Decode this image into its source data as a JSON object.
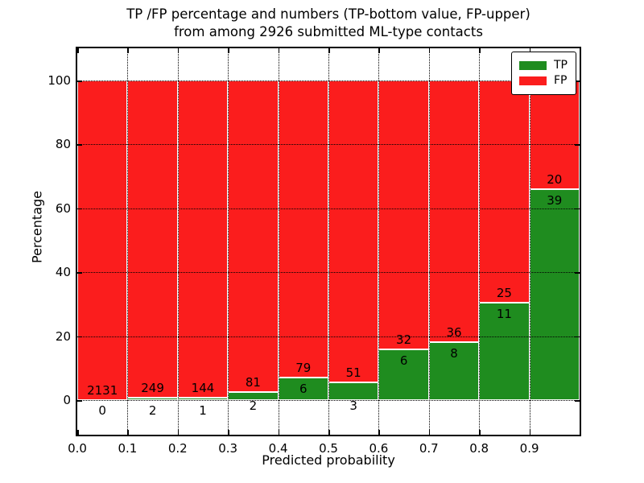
{
  "chart_data": {
    "type": "bar",
    "stacked": true,
    "title_line1": "TP /FP percentage and numbers (TP-bottom value, FP-upper)",
    "title_line2": "from among 2926 submitted ML-type contacts",
    "xlabel": "Predicted probability",
    "ylabel": "Percentage",
    "total_submitted": 2926,
    "grid": "dotted",
    "legend_position": "upper right",
    "xlim": [
      0.0,
      1.0
    ],
    "ylim": [
      -10.8,
      110
    ],
    "bin_width": 0.1,
    "x_tick_labels": [
      "0.0",
      "0.1",
      "0.2",
      "0.3",
      "0.4",
      "0.5",
      "0.6",
      "0.7",
      "0.8",
      "0.9"
    ],
    "y_ticks": [
      {
        "value": 0,
        "label": "0"
      },
      {
        "value": 20,
        "label": "20"
      },
      {
        "value": 40,
        "label": "40"
      },
      {
        "value": 60,
        "label": "60"
      },
      {
        "value": 80,
        "label": "80"
      },
      {
        "value": 100,
        "label": "100"
      }
    ],
    "legend": [
      {
        "label": "TP",
        "color": "#1f8c1f"
      },
      {
        "label": "FP",
        "color": "#fb1d1d"
      }
    ],
    "colors": {
      "tp": "#1f8c1f",
      "fp": "#fb1d1d",
      "bar_edge": "#ffffff",
      "grid": "#000000",
      "frame": "#000000",
      "background": "#ffffff"
    },
    "bins": [
      {
        "x_start": 0.0,
        "x_end": 0.1,
        "tp": 0,
        "fp": 2131,
        "tp_pct": 0.0
      },
      {
        "x_start": 0.1,
        "x_end": 0.2,
        "tp": 2,
        "fp": 249,
        "tp_pct": 0.8
      },
      {
        "x_start": 0.2,
        "x_end": 0.3,
        "tp": 1,
        "fp": 144,
        "tp_pct": 0.69
      },
      {
        "x_start": 0.3,
        "x_end": 0.4,
        "tp": 2,
        "fp": 81,
        "tp_pct": 2.41
      },
      {
        "x_start": 0.4,
        "x_end": 0.5,
        "tp": 6,
        "fp": 79,
        "tp_pct": 7.06
      },
      {
        "x_start": 0.5,
        "x_end": 0.6,
        "tp": 3,
        "fp": 51,
        "tp_pct": 5.56
      },
      {
        "x_start": 0.6,
        "x_end": 0.7,
        "tp": 6,
        "fp": 32,
        "tp_pct": 15.79
      },
      {
        "x_start": 0.7,
        "x_end": 0.8,
        "tp": 8,
        "fp": 36,
        "tp_pct": 18.18
      },
      {
        "x_start": 0.8,
        "x_end": 0.9,
        "tp": 11,
        "fp": 25,
        "tp_pct": 30.56
      },
      {
        "x_start": 0.9,
        "x_end": 1.0,
        "tp": 39,
        "fp": 20,
        "tp_pct": 66.1
      }
    ]
  }
}
